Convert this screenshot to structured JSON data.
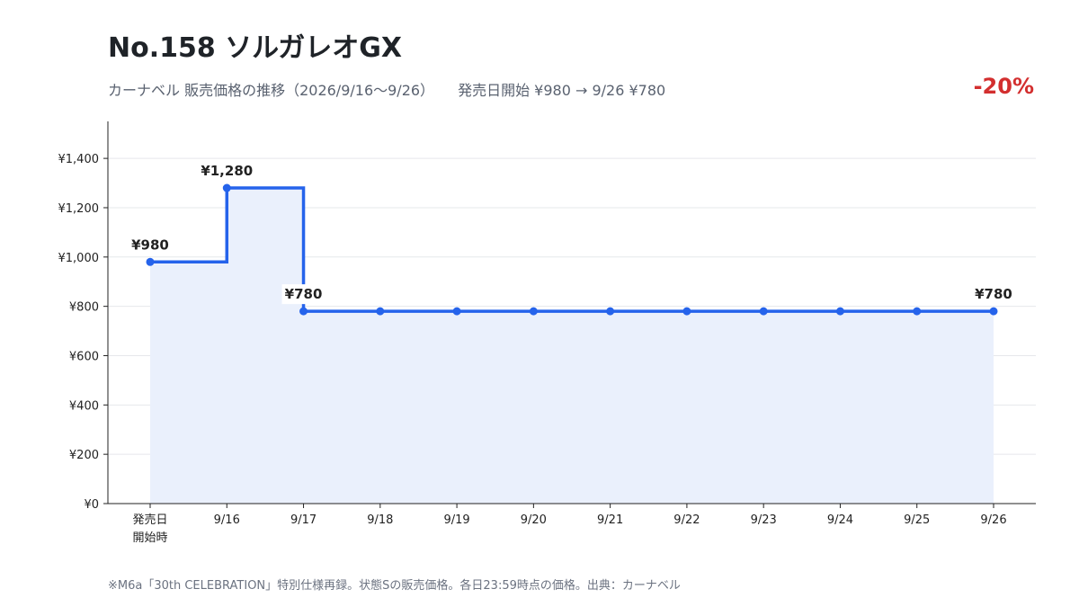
{
  "header": {
    "title": "No.158 ソルガレオGX",
    "subtitle_left": "カーナベル 販売価格の推移（2026/9/16〜9/26）",
    "subtitle_right": "発売日開始 ¥980 → 9/26 ¥780",
    "change": "-20%"
  },
  "footer": {
    "note": "※M6a「30th CELEBRATION」特別仕様再録。状態Sの販売価格。各日23:59時点の価格。出典：カーナベル"
  },
  "colors": {
    "line": "#2563eb",
    "fill": "#eaf0fc",
    "change": "#d32f2f",
    "grid": "#e6e8eb",
    "axis": "#222222"
  },
  "chart_data": {
    "type": "line",
    "step": true,
    "categories": [
      [
        "発売日",
        "開始時"
      ],
      [
        "9/16"
      ],
      [
        "9/17"
      ],
      [
        "9/18"
      ],
      [
        "9/19"
      ],
      [
        "9/20"
      ],
      [
        "9/21"
      ],
      [
        "9/22"
      ],
      [
        "9/23"
      ],
      [
        "9/24"
      ],
      [
        "9/25"
      ],
      [
        "9/26"
      ]
    ],
    "values": [
      980,
      1280,
      780,
      780,
      780,
      780,
      780,
      780,
      780,
      780,
      780,
      780
    ],
    "ylim": [
      0,
      1550
    ],
    "yticks": [
      0,
      200,
      400,
      600,
      800,
      1000,
      1200,
      1400
    ],
    "ytick_labels": [
      "¥0",
      "¥200",
      "¥400",
      "¥600",
      "¥800",
      "¥1,000",
      "¥1,200",
      "¥1,400"
    ],
    "data_labels": [
      {
        "index": 0,
        "text": "¥980"
      },
      {
        "index": 1,
        "text": "¥1,280"
      },
      {
        "index": 2,
        "text": "¥780"
      },
      {
        "index": 11,
        "text": "¥780"
      }
    ],
    "grid": true,
    "legend": "none"
  }
}
